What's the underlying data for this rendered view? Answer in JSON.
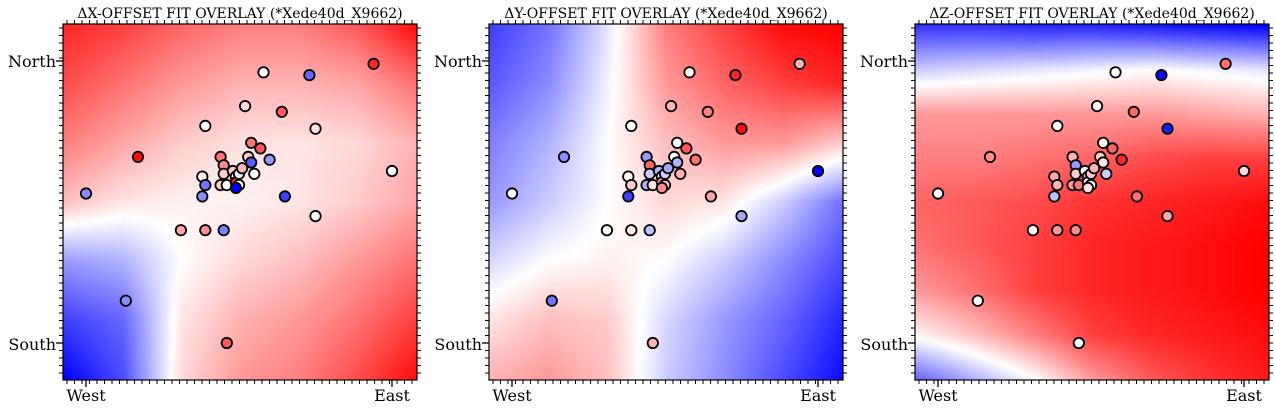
{
  "colors": {
    "negative": "#0000ff",
    "zero": "#ffffff",
    "positive": "#ff0000",
    "marker_edge": "#000000"
  },
  "chart_data": [
    {
      "type": "heatmap",
      "title": "ΔX-OFFSET FIT OVERLAY (*Xede40d_X9662)",
      "xtick_labels": [
        "West",
        "East"
      ],
      "ytick_labels": [
        "North",
        "South"
      ],
      "grid": false,
      "colormap": "bwr",
      "value_range": [
        -1,
        1
      ],
      "background_field": {
        "rows": 7,
        "cols": 7,
        "values": [
          [
            0.85,
            0.75,
            0.6,
            0.5,
            0.5,
            0.65,
            0.95
          ],
          [
            0.7,
            0.55,
            0.4,
            0.3,
            0.3,
            0.35,
            0.55
          ],
          [
            0.5,
            0.35,
            0.2,
            0.12,
            0.1,
            0.15,
            0.3
          ],
          [
            0.25,
            0.1,
            0.05,
            0.05,
            0.1,
            0.2,
            0.35
          ],
          [
            -0.4,
            -0.3,
            0.0,
            0.15,
            0.25,
            0.4,
            0.55
          ],
          [
            -0.75,
            -0.6,
            0.1,
            0.3,
            0.4,
            0.55,
            0.75
          ],
          [
            -1.0,
            -0.7,
            0.15,
            0.4,
            0.5,
            0.7,
            0.95
          ]
        ]
      },
      "points": [
        {
          "x": 0.0,
          "y": 0.53,
          "value": -0.45
        },
        {
          "x": 0.17,
          "y": 0.66,
          "value": 0.95
        },
        {
          "x": 0.13,
          "y": 0.15,
          "value": -0.45
        },
        {
          "x": 0.31,
          "y": 0.4,
          "value": 0.35
        },
        {
          "x": 0.39,
          "y": 0.77,
          "value": 0.0
        },
        {
          "x": 0.38,
          "y": 0.59,
          "value": 0.1
        },
        {
          "x": 0.39,
          "y": 0.56,
          "value": -0.55
        },
        {
          "x": 0.38,
          "y": 0.52,
          "value": -0.45
        },
        {
          "x": 0.39,
          "y": 0.4,
          "value": 0.45
        },
        {
          "x": 0.45,
          "y": 0.4,
          "value": -0.5
        },
        {
          "x": 0.44,
          "y": 0.56,
          "value": 0.2
        },
        {
          "x": 0.44,
          "y": 0.66,
          "value": 0.55
        },
        {
          "x": 0.45,
          "y": 0.63,
          "value": 0.45
        },
        {
          "x": 0.45,
          "y": 0.6,
          "value": 0.2
        },
        {
          "x": 0.46,
          "y": 0.56,
          "value": 0.0
        },
        {
          "x": 0.48,
          "y": 0.61,
          "value": 0.2
        },
        {
          "x": 0.49,
          "y": 0.59,
          "value": 0.0
        },
        {
          "x": 0.49,
          "y": 0.57,
          "value": 0.9
        },
        {
          "x": 0.5,
          "y": 0.56,
          "value": 0.0
        },
        {
          "x": 0.49,
          "y": 0.55,
          "value": -1.0
        },
        {
          "x": 0.5,
          "y": 0.6,
          "value": -0.1
        },
        {
          "x": 0.51,
          "y": 0.62,
          "value": 0.3
        },
        {
          "x": 0.53,
          "y": 0.66,
          "value": 0.2
        },
        {
          "x": 0.54,
          "y": 0.64,
          "value": -0.65
        },
        {
          "x": 0.55,
          "y": 0.6,
          "value": 0.0
        },
        {
          "x": 0.54,
          "y": 0.71,
          "value": 0.55
        },
        {
          "x": 0.57,
          "y": 0.69,
          "value": 0.65
        },
        {
          "x": 0.6,
          "y": 0.65,
          "value": -0.4
        },
        {
          "x": 0.52,
          "y": 0.84,
          "value": 0.15
        },
        {
          "x": 0.58,
          "y": 0.96,
          "value": 0.0
        },
        {
          "x": 0.64,
          "y": 0.82,
          "value": 0.65
        },
        {
          "x": 0.65,
          "y": 0.52,
          "value": -0.75
        },
        {
          "x": 0.73,
          "y": 0.95,
          "value": -0.6
        },
        {
          "x": 0.75,
          "y": 0.76,
          "value": 0.1
        },
        {
          "x": 0.75,
          "y": 0.45,
          "value": 0.0
        },
        {
          "x": 0.94,
          "y": 0.99,
          "value": 0.85
        },
        {
          "x": 1.0,
          "y": 0.61,
          "value": 0.0
        },
        {
          "x": 0.46,
          "y": 0.0,
          "value": 0.65
        }
      ]
    },
    {
      "type": "heatmap",
      "title": "ΔY-OFFSET FIT OVERLAY (*Xede40d_X9662)",
      "xtick_labels": [
        "West",
        "East"
      ],
      "ytick_labels": [
        "North",
        "South"
      ],
      "grid": false,
      "colormap": "bwr",
      "value_range": [
        -1,
        1
      ],
      "background_field": {
        "rows": 7,
        "cols": 7,
        "values": [
          [
            -0.75,
            -0.55,
            -0.1,
            0.5,
            0.75,
            0.95,
            1.0
          ],
          [
            -0.65,
            -0.45,
            -0.05,
            0.4,
            0.6,
            0.75,
            0.85
          ],
          [
            -0.5,
            -0.3,
            0.0,
            0.25,
            0.4,
            0.4,
            0.2
          ],
          [
            -0.4,
            -0.2,
            0.0,
            0.15,
            0.1,
            -0.2,
            -0.55
          ],
          [
            -0.15,
            0.0,
            0.05,
            0.0,
            -0.2,
            -0.45,
            -0.7
          ],
          [
            0.1,
            0.25,
            0.2,
            -0.15,
            -0.4,
            -0.6,
            -0.85
          ],
          [
            0.3,
            0.4,
            0.25,
            -0.2,
            -0.45,
            -0.7,
            -0.95
          ]
        ]
      },
      "points": [
        {
          "x": 0.0,
          "y": 0.53,
          "value": 0.0
        },
        {
          "x": 0.17,
          "y": 0.66,
          "value": -0.45
        },
        {
          "x": 0.13,
          "y": 0.15,
          "value": -0.55
        },
        {
          "x": 0.31,
          "y": 0.4,
          "value": 0.0
        },
        {
          "x": 0.39,
          "y": 0.77,
          "value": 0.0
        },
        {
          "x": 0.38,
          "y": 0.59,
          "value": 0.0
        },
        {
          "x": 0.39,
          "y": 0.56,
          "value": 0.2
        },
        {
          "x": 0.38,
          "y": 0.52,
          "value": -0.75
        },
        {
          "x": 0.39,
          "y": 0.4,
          "value": 0.1
        },
        {
          "x": 0.45,
          "y": 0.4,
          "value": -0.25
        },
        {
          "x": 0.44,
          "y": 0.56,
          "value": -0.3
        },
        {
          "x": 0.44,
          "y": 0.66,
          "value": -0.4
        },
        {
          "x": 0.45,
          "y": 0.63,
          "value": 0.6
        },
        {
          "x": 0.45,
          "y": 0.6,
          "value": -0.2
        },
        {
          "x": 0.46,
          "y": 0.56,
          "value": 0.1
        },
        {
          "x": 0.48,
          "y": 0.61,
          "value": -0.3
        },
        {
          "x": 0.49,
          "y": 0.59,
          "value": 0.0
        },
        {
          "x": 0.49,
          "y": 0.57,
          "value": 0.5
        },
        {
          "x": 0.5,
          "y": 0.56,
          "value": 0.2
        },
        {
          "x": 0.49,
          "y": 0.55,
          "value": 0.45
        },
        {
          "x": 0.5,
          "y": 0.6,
          "value": -0.2
        },
        {
          "x": 0.51,
          "y": 0.62,
          "value": -0.35
        },
        {
          "x": 0.53,
          "y": 0.66,
          "value": 0.0
        },
        {
          "x": 0.54,
          "y": 0.64,
          "value": -0.3
        },
        {
          "x": 0.55,
          "y": 0.6,
          "value": 0.3
        },
        {
          "x": 0.54,
          "y": 0.71,
          "value": 0.0
        },
        {
          "x": 0.57,
          "y": 0.69,
          "value": 0.65
        },
        {
          "x": 0.6,
          "y": 0.65,
          "value": 0.55
        },
        {
          "x": 0.52,
          "y": 0.84,
          "value": 0.3
        },
        {
          "x": 0.58,
          "y": 0.96,
          "value": 0.0
        },
        {
          "x": 0.64,
          "y": 0.82,
          "value": 0.5
        },
        {
          "x": 0.65,
          "y": 0.52,
          "value": 0.35
        },
        {
          "x": 0.73,
          "y": 0.95,
          "value": 0.85
        },
        {
          "x": 0.75,
          "y": 0.76,
          "value": 0.95
        },
        {
          "x": 0.75,
          "y": 0.45,
          "value": -0.35
        },
        {
          "x": 0.94,
          "y": 0.99,
          "value": 0.3
        },
        {
          "x": 1.0,
          "y": 0.61,
          "value": -1.0
        },
        {
          "x": 0.46,
          "y": 0.0,
          "value": 0.3
        }
      ]
    },
    {
      "type": "heatmap",
      "title": "ΔZ-OFFSET FIT OVERLAY (*Xede40d_X9662)",
      "xtick_labels": [
        "West",
        "East"
      ],
      "ytick_labels": [
        "North",
        "South"
      ],
      "grid": false,
      "colormap": "bwr",
      "value_range": [
        -1,
        1
      ],
      "background_field": {
        "rows": 9,
        "cols": 7,
        "values": [
          [
            -0.8,
            -0.8,
            -0.85,
            -0.85,
            -0.9,
            -0.95,
            -1.0
          ],
          [
            -0.2,
            -0.15,
            -0.1,
            -0.05,
            0.0,
            -0.05,
            -0.1
          ],
          [
            0.4,
            0.4,
            0.4,
            0.4,
            0.4,
            0.35,
            0.3
          ],
          [
            0.5,
            0.5,
            0.55,
            0.6,
            0.7,
            0.75,
            0.75
          ],
          [
            0.6,
            0.65,
            0.7,
            0.8,
            0.85,
            0.9,
            0.95
          ],
          [
            0.55,
            0.65,
            0.75,
            0.85,
            0.9,
            0.95,
            1.0
          ],
          [
            0.4,
            0.55,
            0.75,
            0.85,
            0.9,
            0.95,
            1.0
          ],
          [
            0.05,
            0.25,
            0.5,
            0.75,
            0.85,
            0.9,
            0.95
          ],
          [
            -0.6,
            -0.3,
            0.0,
            0.4,
            0.65,
            0.8,
            0.9
          ]
        ]
      },
      "points": [
        {
          "x": 0.0,
          "y": 0.53,
          "value": 0.0
        },
        {
          "x": 0.17,
          "y": 0.66,
          "value": 0.45
        },
        {
          "x": 0.13,
          "y": 0.15,
          "value": 0.0
        },
        {
          "x": 0.31,
          "y": 0.4,
          "value": 0.0
        },
        {
          "x": 0.39,
          "y": 0.77,
          "value": 0.0
        },
        {
          "x": 0.38,
          "y": 0.59,
          "value": 0.35
        },
        {
          "x": 0.39,
          "y": 0.56,
          "value": 0.3
        },
        {
          "x": 0.38,
          "y": 0.52,
          "value": -0.25
        },
        {
          "x": 0.39,
          "y": 0.4,
          "value": 0.4
        },
        {
          "x": 0.45,
          "y": 0.4,
          "value": 0.45
        },
        {
          "x": 0.44,
          "y": 0.56,
          "value": 0.4
        },
        {
          "x": 0.44,
          "y": 0.66,
          "value": 0.3
        },
        {
          "x": 0.45,
          "y": 0.63,
          "value": -0.4
        },
        {
          "x": 0.45,
          "y": 0.6,
          "value": 0.2
        },
        {
          "x": 0.46,
          "y": 0.56,
          "value": 0.55
        },
        {
          "x": 0.48,
          "y": 0.61,
          "value": 0.0
        },
        {
          "x": 0.49,
          "y": 0.59,
          "value": 0.3
        },
        {
          "x": 0.49,
          "y": 0.57,
          "value": 0.1
        },
        {
          "x": 0.5,
          "y": 0.56,
          "value": 0.0
        },
        {
          "x": 0.49,
          "y": 0.55,
          "value": 0.1
        },
        {
          "x": 0.5,
          "y": 0.6,
          "value": 0.2
        },
        {
          "x": 0.51,
          "y": 0.62,
          "value": 0.3
        },
        {
          "x": 0.53,
          "y": 0.66,
          "value": 0.2
        },
        {
          "x": 0.54,
          "y": 0.64,
          "value": 0.1
        },
        {
          "x": 0.55,
          "y": 0.6,
          "value": -0.2
        },
        {
          "x": 0.54,
          "y": 0.71,
          "value": 0.05
        },
        {
          "x": 0.57,
          "y": 0.69,
          "value": 0.6
        },
        {
          "x": 0.6,
          "y": 0.65,
          "value": 0.85
        },
        {
          "x": 0.52,
          "y": 0.84,
          "value": 0.05
        },
        {
          "x": 0.58,
          "y": 0.96,
          "value": 0.0
        },
        {
          "x": 0.64,
          "y": 0.82,
          "value": 0.6
        },
        {
          "x": 0.65,
          "y": 0.52,
          "value": 0.55
        },
        {
          "x": 0.73,
          "y": 0.95,
          "value": -0.95
        },
        {
          "x": 0.75,
          "y": 0.76,
          "value": -0.9
        },
        {
          "x": 0.75,
          "y": 0.45,
          "value": 0.35
        },
        {
          "x": 0.94,
          "y": 0.99,
          "value": 0.55
        },
        {
          "x": 1.0,
          "y": 0.61,
          "value": 0.15
        },
        {
          "x": 0.46,
          "y": 0.0,
          "value": 0.0
        }
      ]
    }
  ]
}
